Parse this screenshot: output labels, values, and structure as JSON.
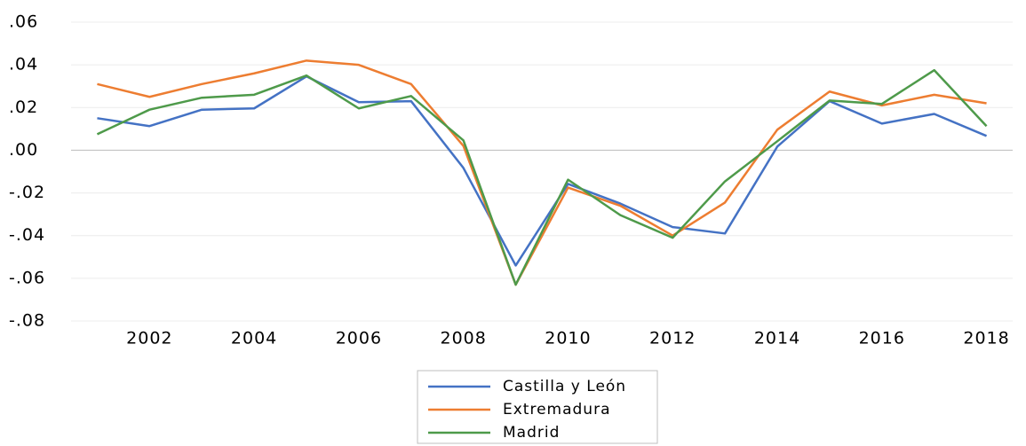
{
  "chart_data": {
    "type": "line",
    "x": [
      2001,
      2002,
      2003,
      2004,
      2005,
      2006,
      2007,
      2008,
      2009,
      2010,
      2011,
      2012,
      2013,
      2014,
      2015,
      2016,
      2017,
      2018
    ],
    "series": [
      {
        "name": "Castilla y León",
        "color": "#4472c4",
        "values": [
          0.015,
          0.0113,
          0.019,
          0.0196,
          0.0346,
          0.0225,
          0.023,
          -0.0083,
          -0.054,
          -0.0158,
          -0.025,
          -0.036,
          -0.039,
          0.0017,
          0.023,
          0.0125,
          0.017,
          0.0067
        ]
      },
      {
        "name": "Extremadura",
        "color": "#ed7d31",
        "values": [
          0.031,
          0.025,
          0.031,
          0.036,
          0.042,
          0.04,
          0.031,
          0.002,
          -0.063,
          -0.0175,
          -0.026,
          -0.04,
          -0.0245,
          0.0096,
          0.0275,
          0.021,
          0.026,
          0.022
        ]
      },
      {
        "name": "Madrid",
        "color": "#4e9a4a",
        "values": [
          0.0075,
          0.019,
          0.0246,
          0.026,
          0.035,
          0.0196,
          0.0254,
          0.0046,
          -0.063,
          -0.0138,
          -0.0304,
          -0.041,
          -0.0146,
          0.0042,
          0.0233,
          0.0217,
          0.0375,
          0.0113
        ]
      }
    ],
    "xlim": [
      2000.5,
      2018.5
    ],
    "xticks": [
      2002,
      2004,
      2006,
      2008,
      2010,
      2012,
      2014,
      2016,
      2018
    ],
    "ylim": [
      -0.08,
      0.06
    ],
    "yticks": [
      {
        "value": -0.08,
        "label": "-.08"
      },
      {
        "value": -0.06,
        "label": "-.06"
      },
      {
        "value": -0.04,
        "label": "-.04"
      },
      {
        "value": -0.02,
        "label": "-.02"
      },
      {
        "value": 0,
        "label": ".00"
      },
      {
        "value": 0.02,
        "label": ".02"
      },
      {
        "value": 0.04,
        "label": ".04"
      },
      {
        "value": 0.06,
        "label": ".06"
      }
    ],
    "grid": true,
    "legend": "bottom"
  }
}
